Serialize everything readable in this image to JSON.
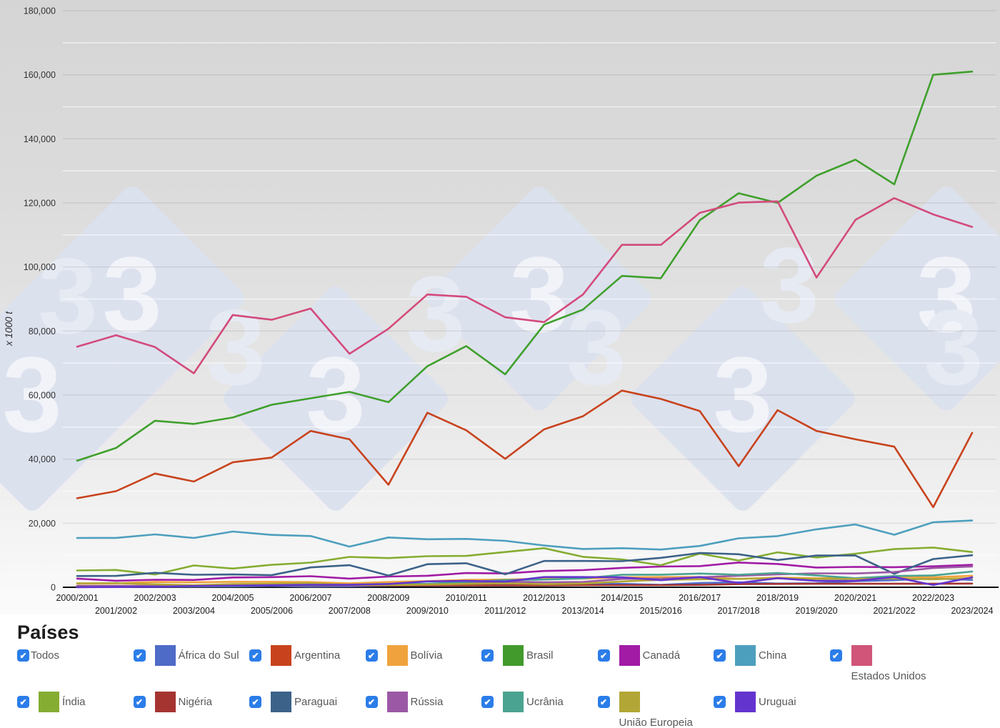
{
  "page": {
    "background_top": "#d5d5d5",
    "background_bottom": "#ffffff",
    "axis_line_color": "#0a0a0a",
    "major_grid_color": "rgba(0,0,0,0.09)",
    "minor_grid_color": "rgba(255,255,255,0.65)"
  },
  "watermark": {
    "glyph": "3",
    "diamond_color": "#dce1ee",
    "glyph_on_diamond_color": "#f1f3f9",
    "glyph_on_background_color": "#e6eaf3"
  },
  "axes": {
    "unit_label": "x 1000 t",
    "y_ticks": [
      {
        "value": 0,
        "label": "0"
      },
      {
        "value": 20000,
        "label": "20,000"
      },
      {
        "value": 40000,
        "label": "40,000"
      },
      {
        "value": 60000,
        "label": "60,000"
      },
      {
        "value": 80000,
        "label": "80,000"
      },
      {
        "value": 100000,
        "label": "100,000"
      },
      {
        "value": 120000,
        "label": "120,000"
      },
      {
        "value": 140000,
        "label": "140,000"
      },
      {
        "value": 160000,
        "label": "160,000"
      },
      {
        "value": 180000,
        "label": "180,000"
      }
    ],
    "minor_step": 10000
  },
  "legend": {
    "title": "Países",
    "checkbox_color": "#2b7de9",
    "check_glyph": "✔",
    "items": [
      {
        "label": "Todos",
        "color": null,
        "checked": true,
        "wrap": false
      },
      {
        "label": "África do Sul",
        "color": "#4f6bc8",
        "checked": true,
        "wrap": false
      },
      {
        "label": "Argentina",
        "color": "#c8431d",
        "checked": true,
        "wrap": false
      },
      {
        "label": "Bolívia",
        "color": "#f0a33c",
        "checked": true,
        "wrap": false
      },
      {
        "label": "Brasil",
        "color": "#429a2d",
        "checked": true,
        "wrap": false
      },
      {
        "label": "Canadá",
        "color": "#a11ba5",
        "checked": true,
        "wrap": false
      },
      {
        "label": "China",
        "color": "#4d9fbe",
        "checked": true,
        "wrap": false
      },
      {
        "label": "Estados Unidos",
        "color": "#d05578",
        "checked": true,
        "wrap": true
      },
      {
        "label": "Índia",
        "color": "#85ad32",
        "checked": true,
        "wrap": false
      },
      {
        "label": "Nigéria",
        "color": "#a53431",
        "checked": true,
        "wrap": false
      },
      {
        "label": "Paraguai",
        "color": "#3c6289",
        "checked": true,
        "wrap": false
      },
      {
        "label": "Rússia",
        "color": "#9b58a5",
        "checked": true,
        "wrap": false
      },
      {
        "label": "Ucrânia",
        "color": "#4aa390",
        "checked": true,
        "wrap": false
      },
      {
        "label": "União Europeia",
        "color": "#b2a636",
        "checked": true,
        "wrap": true
      },
      {
        "label": "Uruguai",
        "color": "#6434cf",
        "checked": true,
        "wrap": false
      }
    ]
  },
  "chart_data": {
    "type": "line",
    "title": "",
    "xlabel": "",
    "ylabel": "x 1000 t",
    "ylim": [
      0,
      180000
    ],
    "grid": true,
    "legend_position": "bottom",
    "categories": [
      "2000/2001",
      "2001/2002",
      "2002/2003",
      "2003/2004",
      "2004/2005",
      "2005/2006",
      "2006/2007",
      "2007/2008",
      "2008/2009",
      "2009/2010",
      "2010/2011",
      "2011/2012",
      "2012/2013",
      "2013/2014",
      "2014/2015",
      "2015/2016",
      "2016/2017",
      "2017/2018",
      "2018/2019",
      "2019/2020",
      "2020/2021",
      "2021/2022",
      "2022/2023",
      "2023/2024"
    ],
    "series": [
      {
        "name": "África do Sul",
        "color": "#4f6bc8",
        "values": [
          220,
          225,
          140,
          220,
          270,
          425,
          205,
          280,
          516,
          567,
          710,
          650,
          787,
          948,
          1070,
          742,
          1316,
          1540,
          1170,
          1245,
          1897,
          2200,
          2770,
          2300
        ]
      },
      {
        "name": "Argentina",
        "color": "#c8431d",
        "values": [
          27800,
          30000,
          35500,
          33000,
          39000,
          40500,
          48800,
          46200,
          32000,
          54500,
          49000,
          40100,
          49300,
          53400,
          61400,
          58800,
          55000,
          37800,
          55300,
          48800,
          46200,
          43900,
          25000,
          48200
        ]
      },
      {
        "name": "Bolívia",
        "color": "#f0a33c",
        "values": [
          1200,
          1250,
          1650,
          1550,
          1690,
          1690,
          1600,
          1200,
          1630,
          1920,
          2300,
          2400,
          2680,
          2700,
          3100,
          3200,
          3200,
          2600,
          2990,
          2830,
          2830,
          3300,
          3100,
          3600
        ]
      },
      {
        "name": "Brasil",
        "color": "#3fa02c",
        "values": [
          39500,
          43500,
          52000,
          51000,
          53000,
          57000,
          59000,
          61000,
          57800,
          69000,
          75300,
          66500,
          82000,
          86700,
          97200,
          96500,
          114600,
          123000,
          120000,
          128500,
          133500,
          125800,
          160000,
          161000
        ]
      },
      {
        "name": "Canadá",
        "color": "#a11ba5",
        "values": [
          2700,
          2040,
          2340,
          2270,
          3050,
          3160,
          3460,
          2700,
          3340,
          3580,
          4445,
          4300,
          5090,
          5360,
          6050,
          6460,
          6600,
          7720,
          7270,
          6145,
          6360,
          6270,
          6540,
          7000
        ]
      },
      {
        "name": "China",
        "color": "#4d9fbe",
        "values": [
          15400,
          15410,
          16500,
          15400,
          17400,
          16350,
          16000,
          12700,
          15540,
          14980,
          15100,
          14500,
          13050,
          11950,
          12200,
          11785,
          12900,
          15280,
          15970,
          18100,
          19600,
          16400,
          20300,
          20840
        ]
      },
      {
        "name": "Estados Unidos",
        "color": "#d34a7c",
        "values": [
          75100,
          78700,
          75000,
          66800,
          85000,
          83500,
          87000,
          72900,
          80700,
          91400,
          90700,
          84300,
          82800,
          91400,
          106900,
          106900,
          116900,
          120100,
          120500,
          96700,
          114700,
          121500,
          116400,
          112500
        ]
      },
      {
        "name": "Índia",
        "color": "#85ad32",
        "values": [
          5250,
          5400,
          4000,
          6800,
          5850,
          7000,
          7690,
          9470,
          9100,
          9700,
          9800,
          11000,
          12200,
          9500,
          8700,
          6900,
          10500,
          8350,
          10900,
          9300,
          10450,
          11900,
          12400,
          11000
        ]
      },
      {
        "name": "Nigéria",
        "color": "#a53431",
        "values": [
          430,
          440,
          450,
          480,
          490,
          600,
          600,
          600,
          590,
          570,
          580,
          590,
          590,
          680,
          680,
          680,
          730,
          990,
          1050,
          1100,
          1100,
          1100,
          1100,
          1150
        ]
      },
      {
        "name": "Paraguai",
        "color": "#3c6289",
        "values": [
          3500,
          3550,
          4500,
          3900,
          4000,
          3800,
          6200,
          6900,
          3650,
          7200,
          7500,
          4050,
          8200,
          8200,
          8150,
          9200,
          10700,
          10300,
          8500,
          9900,
          9900,
          4200,
          8800,
          10000
        ]
      },
      {
        "name": "Rússia",
        "color": "#9b58a5",
        "values": [
          280,
          350,
          420,
          390,
          555,
          690,
          810,
          650,
          750,
          945,
          1220,
          1760,
          1530,
          1640,
          2600,
          2710,
          3100,
          3600,
          4030,
          4360,
          4310,
          4760,
          6000,
          6500
        ]
      },
      {
        "name": "Ucrânia",
        "color": "#4aa390",
        "values": [
          60,
          75,
          230,
          230,
          360,
          615,
          720,
          810,
          1040,
          1060,
          1680,
          2260,
          2410,
          2770,
          3900,
          3930,
          4280,
          3900,
          4460,
          3700,
          2800,
          3500,
          3700,
          4900
        ]
      },
      {
        "name": "União Europeia",
        "color": "#b2a636",
        "values": [
          1190,
          1290,
          940,
          620,
          990,
          1100,
          1280,
          760,
          700,
          850,
          1050,
          1220,
          960,
          1170,
          1810,
          2310,
          2500,
          2640,
          2800,
          2620,
          2580,
          2740,
          2500,
          2900
        ]
      },
      {
        "name": "Uruguai",
        "color": "#6434cf",
        "values": [
          30,
          70,
          180,
          380,
          480,
          630,
          780,
          780,
          1030,
          1820,
          1990,
          1760,
          3200,
          3200,
          3110,
          2210,
          3200,
          1330,
          2830,
          1990,
          1990,
          3200,
          700,
          3100
        ]
      }
    ]
  }
}
